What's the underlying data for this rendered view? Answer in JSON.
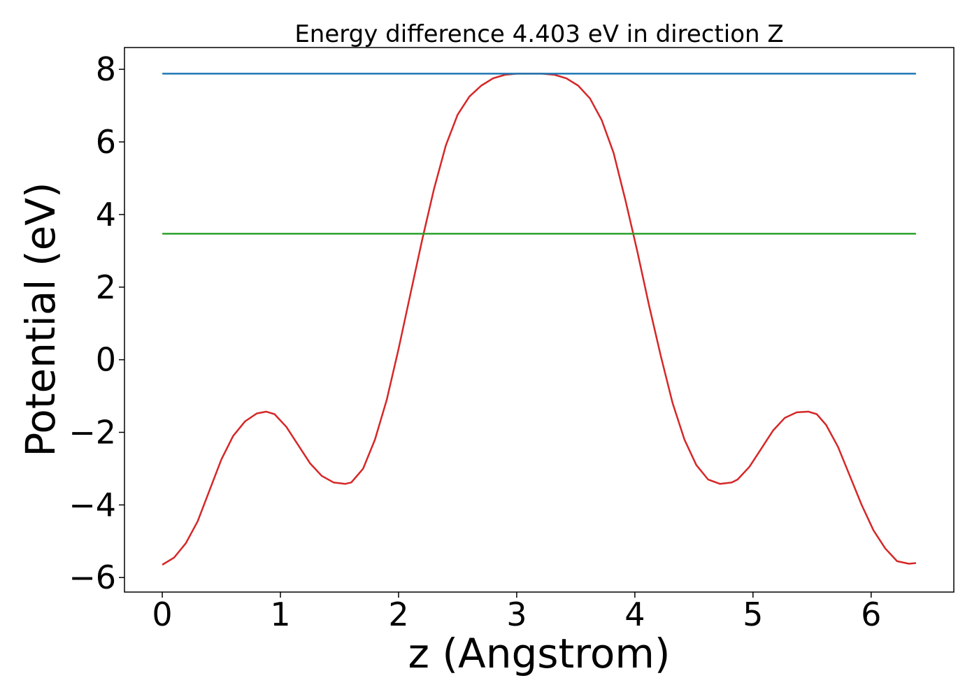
{
  "chart_data": {
    "type": "line",
    "title": "Energy difference 4.403 eV in direction Z",
    "xlabel": "z (Angstrom)",
    "ylabel": "Potential (eV)",
    "xlim": [
      -0.32,
      6.7
    ],
    "ylim": [
      -6.4,
      8.6
    ],
    "xticks": [
      0,
      1,
      2,
      3,
      4,
      5,
      6
    ],
    "yticks": [
      -6,
      -4,
      -2,
      0,
      2,
      4,
      6,
      8
    ],
    "grid": false,
    "series": [
      {
        "color": "#d62728",
        "x": [
          0.0,
          0.1,
          0.2,
          0.3,
          0.4,
          0.5,
          0.6,
          0.7,
          0.8,
          0.88,
          0.95,
          1.05,
          1.15,
          1.25,
          1.35,
          1.45,
          1.55,
          1.6,
          1.7,
          1.8,
          1.9,
          2.0,
          2.1,
          2.2,
          2.3,
          2.4,
          2.5,
          2.6,
          2.7,
          2.8,
          2.9,
          3.0,
          3.1,
          3.21,
          3.32,
          3.42,
          3.52,
          3.62,
          3.72,
          3.82,
          3.92,
          4.02,
          4.12,
          4.22,
          4.32,
          4.42,
          4.52,
          4.62,
          4.72,
          4.82,
          4.87,
          4.97,
          5.07,
          5.17,
          5.27,
          5.37,
          5.47,
          5.54,
          5.62,
          5.72,
          5.82,
          5.92,
          6.02,
          6.12,
          6.22,
          6.32,
          6.38
        ],
        "y": [
          -5.65,
          -5.45,
          -5.05,
          -4.45,
          -3.6,
          -2.75,
          -2.1,
          -1.7,
          -1.48,
          -1.43,
          -1.5,
          -1.85,
          -2.35,
          -2.85,
          -3.2,
          -3.38,
          -3.42,
          -3.38,
          -3.0,
          -2.2,
          -1.1,
          0.3,
          1.8,
          3.3,
          4.7,
          5.9,
          6.75,
          7.25,
          7.55,
          7.75,
          7.85,
          7.88,
          7.88,
          7.88,
          7.85,
          7.75,
          7.55,
          7.2,
          6.6,
          5.7,
          4.4,
          3.0,
          1.5,
          0.1,
          -1.2,
          -2.2,
          -2.9,
          -3.3,
          -3.42,
          -3.38,
          -3.3,
          -2.95,
          -2.45,
          -1.95,
          -1.6,
          -1.45,
          -1.43,
          -1.5,
          -1.8,
          -2.4,
          -3.2,
          -4.0,
          -4.7,
          -5.2,
          -5.55,
          -5.62,
          -5.6
        ]
      },
      {
        "color": "#1f77b4",
        "x": [
          0.0,
          6.38
        ],
        "y": [
          7.88,
          7.88
        ]
      },
      {
        "color": "#2ca02c",
        "x": [
          0.0,
          6.38
        ],
        "y": [
          3.47,
          3.47
        ]
      }
    ]
  }
}
